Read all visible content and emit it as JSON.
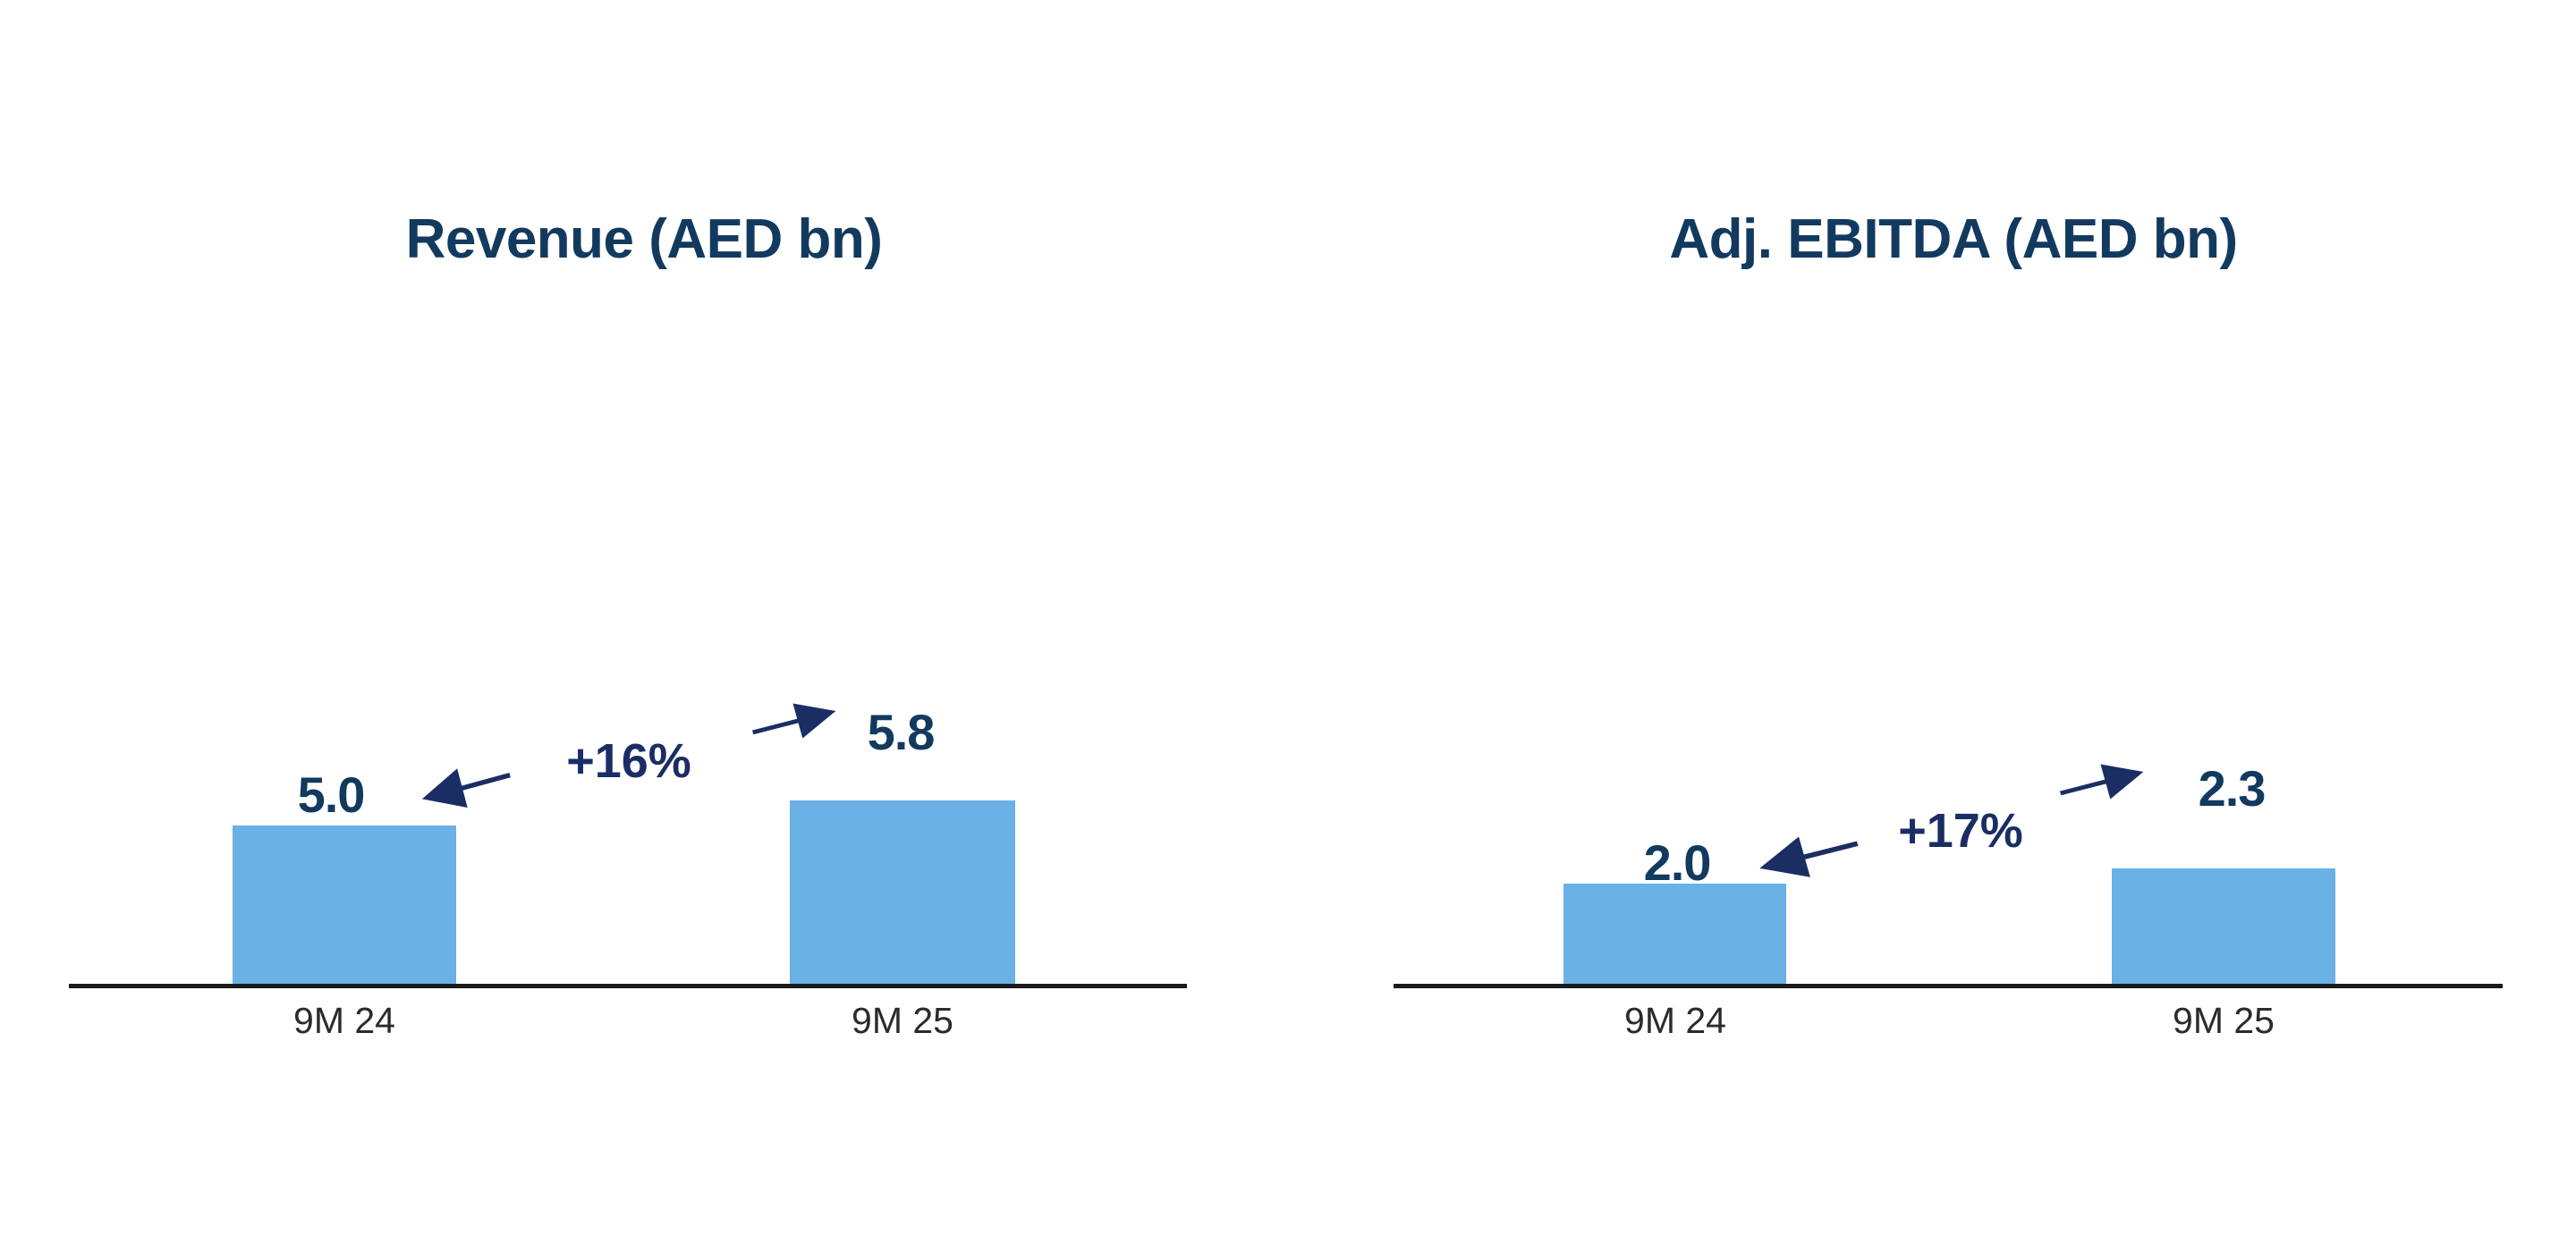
{
  "page": {
    "background": "#ffffff"
  },
  "colors": {
    "bar_blue": "#6ab1e6",
    "title_navy": "#123a5f",
    "value_navy": "#123a5f",
    "accent_navy": "#1a2e64",
    "axis": "#1a1a1a",
    "category_text": "#2b2b2b"
  },
  "chart_data": [
    {
      "type": "bar",
      "title": "Revenue (AED bn)",
      "unit": "AED bn",
      "categories": [
        "9M 24",
        "9M 25"
      ],
      "values": [
        5.0,
        5.8
      ],
      "value_labels": [
        "5.0",
        "5.8"
      ],
      "growth_annotation": "+16%",
      "bar_color": "#6ab1e6",
      "ylim": [
        0,
        20
      ],
      "grid": false,
      "legend": false,
      "axis_line": "bottom-only"
    },
    {
      "type": "bar",
      "title": "Adj. EBITDA (AED bn)",
      "unit": "AED bn",
      "categories": [
        "9M 24",
        "9M 25"
      ],
      "values": [
        2.0,
        2.3
      ],
      "value_labels": [
        "2.0",
        "2.3"
      ],
      "growth_annotation": "+17%",
      "bar_color": "#6ab1e6",
      "ylim": [
        0,
        12.6
      ],
      "grid": false,
      "legend": false,
      "axis_line": "bottom-only"
    }
  ]
}
